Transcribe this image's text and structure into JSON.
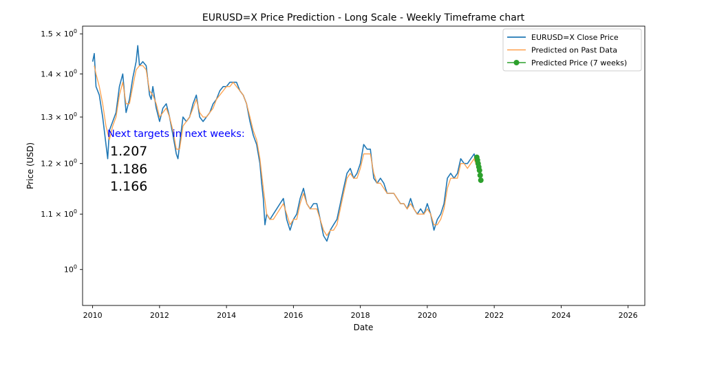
{
  "colors": {
    "close": "#1f77b4",
    "past": "#ff9f4a",
    "predicted": "#2ca02c",
    "annotation_heading": "#0000ff",
    "annotation_values": "#000000"
  },
  "chart_data": {
    "type": "line",
    "title": "EURUSD=X Price Prediction - Long Scale - Weekly Timeframe chart",
    "xlabel": "Date",
    "ylabel": "Price (USD)",
    "yscale": "log",
    "xlim": [
      2009.7,
      2026.5
    ],
    "ylim": [
      0.94,
      1.52
    ],
    "xticks": [
      {
        "value": 2010,
        "label": "2010"
      },
      {
        "value": 2012,
        "label": "2012"
      },
      {
        "value": 2014,
        "label": "2014"
      },
      {
        "value": 2016,
        "label": "2016"
      },
      {
        "value": 2018,
        "label": "2018"
      },
      {
        "value": 2020,
        "label": "2020"
      },
      {
        "value": 2022,
        "label": "2022"
      },
      {
        "value": 2024,
        "label": "2024"
      },
      {
        "value": 2026,
        "label": "2026"
      }
    ],
    "yticks": [
      {
        "value": 1.0,
        "base": "10",
        "exp": "0"
      },
      {
        "value": 1.1,
        "base": "1.1 × 10",
        "exp": "0"
      },
      {
        "value": 1.2,
        "base": "1.2 × 10",
        "exp": "0"
      },
      {
        "value": 1.3,
        "base": "1.3 × 10",
        "exp": "0"
      },
      {
        "value": 1.4,
        "base": "1.4 × 10",
        "exp": "0"
      },
      {
        "value": 1.5,
        "base": "1.5 × 10",
        "exp": "0"
      }
    ],
    "grid": false,
    "legend_position": "top-right",
    "series": [
      {
        "name": "EURUSD=X Close Price",
        "style": "line",
        "x": [
          2010.0,
          2010.05,
          2010.1,
          2010.2,
          2010.3,
          2010.4,
          2010.45,
          2010.5,
          2010.6,
          2010.7,
          2010.8,
          2010.9,
          2011.0,
          2011.1,
          2011.2,
          2011.3,
          2011.35,
          2011.4,
          2011.5,
          2011.6,
          2011.7,
          2011.75,
          2011.8,
          2011.9,
          2012.0,
          2012.1,
          2012.2,
          2012.3,
          2012.4,
          2012.5,
          2012.55,
          2012.6,
          2012.7,
          2012.8,
          2012.9,
          2013.0,
          2013.1,
          2013.2,
          2013.3,
          2013.4,
          2013.5,
          2013.6,
          2013.7,
          2013.8,
          2013.9,
          2014.0,
          2014.1,
          2014.2,
          2014.3,
          2014.4,
          2014.5,
          2014.6,
          2014.7,
          2014.8,
          2014.9,
          2015.0,
          2015.05,
          2015.1,
          2015.15,
          2015.2,
          2015.3,
          2015.4,
          2015.5,
          2015.6,
          2015.7,
          2015.8,
          2015.9,
          2016.0,
          2016.1,
          2016.2,
          2016.3,
          2016.4,
          2016.5,
          2016.6,
          2016.7,
          2016.8,
          2016.9,
          2017.0,
          2017.1,
          2017.2,
          2017.3,
          2017.4,
          2017.5,
          2017.6,
          2017.7,
          2017.8,
          2017.9,
          2018.0,
          2018.1,
          2018.2,
          2018.3,
          2018.4,
          2018.5,
          2018.6,
          2018.7,
          2018.8,
          2018.9,
          2019.0,
          2019.1,
          2019.2,
          2019.3,
          2019.4,
          2019.5,
          2019.6,
          2019.7,
          2019.8,
          2019.9,
          2020.0,
          2020.1,
          2020.2,
          2020.3,
          2020.4,
          2020.5,
          2020.6,
          2020.7,
          2020.8,
          2020.9,
          2021.0,
          2021.1,
          2021.2,
          2021.3,
          2021.4,
          2021.5
        ],
        "y": [
          1.43,
          1.45,
          1.37,
          1.35,
          1.3,
          1.24,
          1.21,
          1.27,
          1.29,
          1.31,
          1.37,
          1.4,
          1.31,
          1.34,
          1.39,
          1.43,
          1.47,
          1.42,
          1.43,
          1.42,
          1.35,
          1.34,
          1.37,
          1.32,
          1.29,
          1.32,
          1.33,
          1.3,
          1.26,
          1.22,
          1.21,
          1.24,
          1.3,
          1.29,
          1.3,
          1.33,
          1.35,
          1.3,
          1.29,
          1.3,
          1.31,
          1.33,
          1.34,
          1.36,
          1.37,
          1.37,
          1.38,
          1.38,
          1.38,
          1.36,
          1.35,
          1.33,
          1.29,
          1.26,
          1.24,
          1.2,
          1.16,
          1.13,
          1.08,
          1.1,
          1.09,
          1.1,
          1.11,
          1.12,
          1.13,
          1.09,
          1.07,
          1.09,
          1.1,
          1.13,
          1.15,
          1.12,
          1.11,
          1.12,
          1.12,
          1.09,
          1.06,
          1.05,
          1.07,
          1.08,
          1.09,
          1.12,
          1.15,
          1.18,
          1.19,
          1.17,
          1.18,
          1.2,
          1.24,
          1.23,
          1.23,
          1.17,
          1.16,
          1.17,
          1.16,
          1.14,
          1.14,
          1.14,
          1.13,
          1.12,
          1.12,
          1.11,
          1.13,
          1.11,
          1.1,
          1.11,
          1.1,
          1.12,
          1.1,
          1.07,
          1.09,
          1.1,
          1.12,
          1.17,
          1.18,
          1.17,
          1.18,
          1.21,
          1.2,
          1.2,
          1.21,
          1.22,
          1.19
        ]
      },
      {
        "name": "Predicted on Past Data",
        "style": "line",
        "x": [
          2010.05,
          2010.1,
          2010.2,
          2010.3,
          2010.4,
          2010.5,
          2010.6,
          2010.7,
          2010.8,
          2010.9,
          2011.0,
          2011.1,
          2011.2,
          2011.3,
          2011.4,
          2011.5,
          2011.6,
          2011.7,
          2011.8,
          2011.9,
          2012.0,
          2012.1,
          2012.2,
          2012.3,
          2012.4,
          2012.5,
          2012.6,
          2012.7,
          2012.8,
          2012.9,
          2013.0,
          2013.1,
          2013.2,
          2013.3,
          2013.4,
          2013.5,
          2013.6,
          2013.7,
          2013.8,
          2013.9,
          2014.0,
          2014.1,
          2014.2,
          2014.3,
          2014.4,
          2014.5,
          2014.6,
          2014.7,
          2014.8,
          2014.9,
          2015.0,
          2015.1,
          2015.2,
          2015.3,
          2015.4,
          2015.5,
          2015.6,
          2015.7,
          2015.8,
          2015.9,
          2016.0,
          2016.1,
          2016.2,
          2016.3,
          2016.4,
          2016.5,
          2016.6,
          2016.7,
          2016.8,
          2016.9,
          2017.0,
          2017.1,
          2017.2,
          2017.3,
          2017.4,
          2017.5,
          2017.6,
          2017.7,
          2017.8,
          2017.9,
          2018.0,
          2018.1,
          2018.2,
          2018.3,
          2018.4,
          2018.5,
          2018.6,
          2018.7,
          2018.8,
          2018.9,
          2019.0,
          2019.1,
          2019.2,
          2019.3,
          2019.4,
          2019.5,
          2019.6,
          2019.7,
          2019.8,
          2019.9,
          2020.0,
          2020.1,
          2020.2,
          2020.3,
          2020.4,
          2020.5,
          2020.6,
          2020.7,
          2020.8,
          2020.9,
          2021.0,
          2021.1,
          2021.2,
          2021.3,
          2021.4,
          2021.5
        ],
        "y": [
          1.42,
          1.4,
          1.37,
          1.33,
          1.28,
          1.25,
          1.28,
          1.3,
          1.35,
          1.38,
          1.33,
          1.33,
          1.37,
          1.41,
          1.42,
          1.42,
          1.41,
          1.36,
          1.35,
          1.33,
          1.3,
          1.31,
          1.32,
          1.3,
          1.27,
          1.23,
          1.23,
          1.28,
          1.29,
          1.3,
          1.32,
          1.34,
          1.31,
          1.3,
          1.3,
          1.31,
          1.32,
          1.34,
          1.35,
          1.36,
          1.37,
          1.37,
          1.38,
          1.37,
          1.36,
          1.35,
          1.33,
          1.3,
          1.27,
          1.25,
          1.21,
          1.15,
          1.1,
          1.09,
          1.09,
          1.1,
          1.11,
          1.12,
          1.1,
          1.08,
          1.09,
          1.09,
          1.12,
          1.14,
          1.12,
          1.11,
          1.11,
          1.11,
          1.09,
          1.07,
          1.06,
          1.07,
          1.07,
          1.08,
          1.11,
          1.14,
          1.17,
          1.18,
          1.17,
          1.17,
          1.19,
          1.22,
          1.22,
          1.22,
          1.18,
          1.16,
          1.16,
          1.15,
          1.14,
          1.14,
          1.14,
          1.13,
          1.12,
          1.12,
          1.11,
          1.12,
          1.11,
          1.1,
          1.1,
          1.1,
          1.11,
          1.1,
          1.08,
          1.08,
          1.09,
          1.11,
          1.15,
          1.17,
          1.17,
          1.17,
          1.2,
          1.2,
          1.19,
          1.2,
          1.21,
          1.19
        ]
      },
      {
        "name": "Predicted Price (7 weeks)",
        "style": "line-marker",
        "x": [
          2021.48,
          2021.5,
          2021.52,
          2021.54,
          2021.56,
          2021.58,
          2021.6
        ],
        "y": [
          1.213,
          1.207,
          1.2,
          1.193,
          1.186,
          1.176,
          1.166
        ]
      }
    ],
    "annotation": {
      "heading": "Next targets in next weeks:",
      "values": [
        "1.207",
        "1.186",
        "1.166"
      ]
    }
  }
}
